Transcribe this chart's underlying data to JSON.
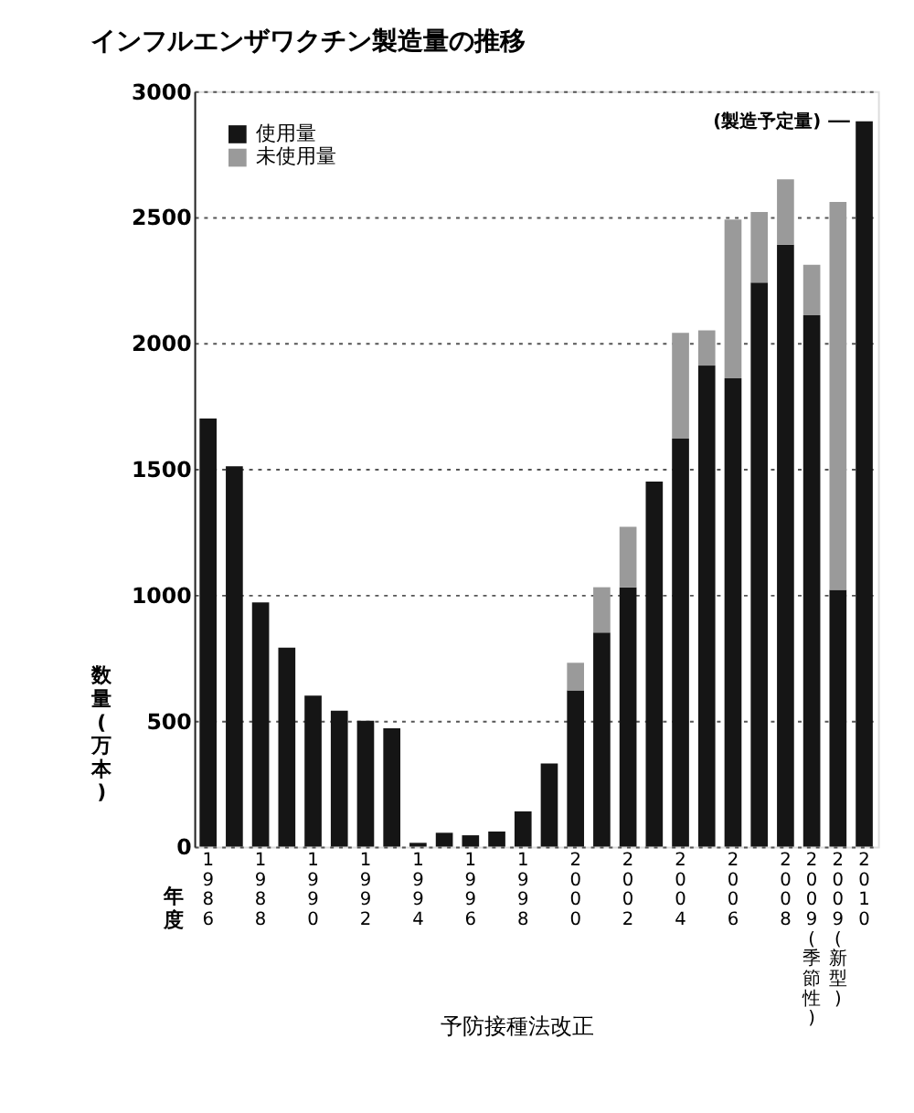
{
  "chart_data": {
    "type": "bar",
    "title": "インフルエンザワクチン製造量の推移",
    "xlabel": "年度",
    "ylabel": "数量(万本)",
    "categories": [
      "1986",
      null,
      "1988",
      null,
      "1990",
      null,
      "1992",
      null,
      "1994",
      null,
      "1996",
      null,
      "1998",
      null,
      "2000",
      null,
      "2002",
      null,
      "2004",
      null,
      "2006",
      null,
      "2008",
      "2009(季節性)",
      "2009(新型)",
      "2010"
    ],
    "stacked": true,
    "series": [
      {
        "name": "使用量",
        "color": "#151515",
        "values": [
          1700,
          1510,
          970,
          790,
          600,
          540,
          500,
          470,
          15,
          55,
          45,
          60,
          140,
          330,
          620,
          850,
          1030,
          1450,
          1620,
          1910,
          1860,
          2240,
          2390,
          2110,
          1020,
          2880
        ]
      },
      {
        "name": "未使用量",
        "color": "#9a9a9a",
        "values": [
          null,
          null,
          null,
          null,
          null,
          null,
          null,
          null,
          null,
          null,
          null,
          null,
          null,
          null,
          110,
          180,
          240,
          null,
          420,
          140,
          630,
          280,
          260,
          200,
          1540,
          null
        ]
      }
    ],
    "ylim": [
      0,
      3000
    ],
    "yticks": [
      0,
      500,
      1000,
      1500,
      2000,
      2500,
      3000
    ],
    "grid": "y",
    "legend": "top left",
    "annotations": [
      {
        "text": "(製造予定量)",
        "x": "2010",
        "y": 2880
      },
      "予防接種法改正"
    ]
  }
}
